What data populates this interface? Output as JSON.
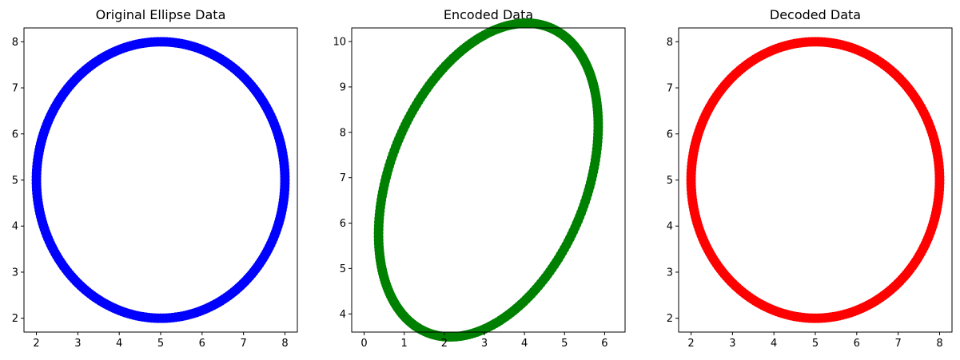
{
  "chart_data": [
    {
      "type": "scatter",
      "title": "Original Ellipse Data",
      "xlabel": "",
      "ylabel": "",
      "color": "#0000ff",
      "shape": "ellipse",
      "center": [
        5,
        5
      ],
      "semi_axes": [
        3,
        3
      ],
      "rotation_deg": 0,
      "x_ticks": [
        "2",
        "3",
        "4",
        "5",
        "6",
        "7",
        "8"
      ],
      "y_ticks": [
        "2",
        "3",
        "4",
        "5",
        "6",
        "7",
        "8"
      ],
      "xlim": [
        1.7,
        8.3
      ],
      "ylim": [
        1.7,
        8.3
      ],
      "grid": false,
      "legend": false
    },
    {
      "type": "scatter",
      "title": "Encoded Data",
      "xlabel": "",
      "ylabel": "",
      "color": "#008000",
      "shape": "ellipse",
      "center": [
        3.1,
        6.95
      ],
      "semi_axes": [
        3.7,
        2.4
      ],
      "rotation_deg": 62,
      "x_ticks": [
        "0",
        "1",
        "2",
        "3",
        "4",
        "5",
        "6"
      ],
      "y_ticks": [
        "4",
        "5",
        "6",
        "7",
        "8",
        "9",
        "10"
      ],
      "xlim": [
        -0.31,
        6.51
      ],
      "ylim": [
        3.6,
        10.3
      ],
      "grid": false,
      "legend": false
    },
    {
      "type": "scatter",
      "title": "Decoded Data",
      "xlabel": "",
      "ylabel": "",
      "color": "#ff0000",
      "shape": "ellipse",
      "center": [
        5,
        5
      ],
      "semi_axes": [
        3,
        3
      ],
      "rotation_deg": 0,
      "x_ticks": [
        "2",
        "3",
        "4",
        "5",
        "6",
        "7",
        "8"
      ],
      "y_ticks": [
        "2",
        "3",
        "4",
        "5",
        "6",
        "7",
        "8"
      ],
      "xlim": [
        1.7,
        8.3
      ],
      "ylim": [
        1.7,
        8.3
      ],
      "grid": false,
      "legend": false
    }
  ]
}
